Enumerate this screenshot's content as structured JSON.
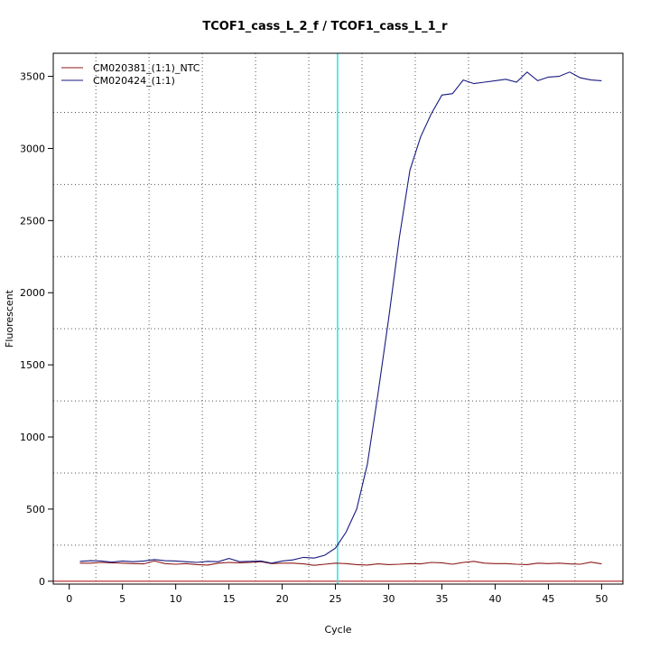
{
  "chart_data": {
    "type": "line",
    "title": "TCOF1_cass_L_2_f / TCOF1_cass_L_1_r",
    "xlabel": "Cycle",
    "ylabel": "Fluorescent",
    "xlim": [
      -1.5,
      52
    ],
    "ylim": [
      -20,
      3660
    ],
    "x_ticks": [
      0,
      5,
      10,
      15,
      20,
      25,
      30,
      35,
      40,
      45,
      50
    ],
    "y_ticks": [
      0,
      500,
      1000,
      1500,
      2000,
      2500,
      3000,
      3500
    ],
    "grid": true,
    "grid_style": "dotted",
    "legend_position": "top-left",
    "threshold": {
      "x": 25.2,
      "color": "#33e6e6"
    },
    "baseline": {
      "y": 0,
      "color": "#b22222"
    },
    "series": [
      {
        "name": "CM020381_(1:1)_NTC",
        "color": "#8b1a1a",
        "x": [
          1,
          2,
          3,
          4,
          5,
          6,
          7,
          8,
          9,
          10,
          11,
          12,
          13,
          14,
          15,
          16,
          17,
          18,
          19,
          20,
          21,
          22,
          23,
          24,
          25,
          26,
          27,
          28,
          29,
          30,
          31,
          32,
          33,
          34,
          35,
          36,
          37,
          38,
          39,
          40,
          41,
          42,
          43,
          44,
          45,
          46,
          47,
          48,
          49,
          50
        ],
        "values": [
          125,
          125,
          130,
          128,
          125,
          122,
          120,
          140,
          122,
          118,
          122,
          115,
          112,
          125,
          130,
          128,
          130,
          135,
          122,
          125,
          125,
          120,
          110,
          118,
          125,
          122,
          115,
          112,
          120,
          115,
          118,
          122,
          120,
          130,
          128,
          118,
          130,
          138,
          125,
          122,
          122,
          118,
          115,
          125,
          122,
          125,
          120,
          118,
          132,
          120
        ]
      },
      {
        "name": "CM020424_(1:1)",
        "color": "#1a1a80",
        "x": [
          1,
          2,
          3,
          4,
          5,
          6,
          7,
          8,
          9,
          10,
          11,
          12,
          13,
          14,
          15,
          16,
          17,
          18,
          19,
          20,
          21,
          22,
          23,
          24,
          25,
          26,
          27,
          28,
          29,
          30,
          31,
          32,
          33,
          34,
          35,
          36,
          37,
          38,
          39,
          40,
          41,
          42,
          43,
          44,
          45,
          46,
          47,
          48,
          49,
          50
        ],
        "values": [
          138,
          142,
          140,
          132,
          140,
          135,
          140,
          150,
          142,
          140,
          135,
          130,
          138,
          135,
          158,
          135,
          138,
          140,
          125,
          140,
          148,
          165,
          160,
          180,
          230,
          340,
          500,
          810,
          1300,
          1820,
          2380,
          2850,
          3080,
          3240,
          3370,
          3380,
          3475,
          3450,
          3460,
          3470,
          3480,
          3460,
          3530,
          3470,
          3495,
          3500,
          3530,
          3490,
          3475,
          3470
        ]
      }
    ]
  }
}
